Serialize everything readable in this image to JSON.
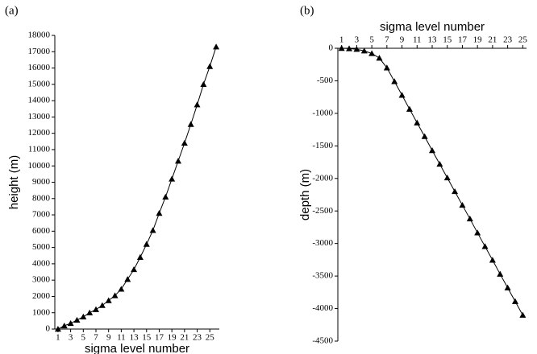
{
  "chart_data": [
    {
      "type": "line",
      "label": "(a)",
      "xlabel": "sigma level number",
      "ylabel": "height (m)",
      "x": [
        1,
        2,
        3,
        4,
        5,
        6,
        7,
        8,
        9,
        10,
        11,
        12,
        13,
        14,
        15,
        16,
        17,
        18,
        19,
        20,
        21,
        22,
        23,
        24,
        25,
        26
      ],
      "series": [
        {
          "name": "height",
          "color": "#000000",
          "values": [
            0,
            200,
            350,
            550,
            750,
            1000,
            1200,
            1450,
            1750,
            2050,
            2450,
            3050,
            3650,
            4400,
            5200,
            6050,
            7100,
            8100,
            9200,
            10300,
            11400,
            12550,
            13750,
            15000,
            16100,
            17300
          ]
        }
      ],
      "xlim": [
        0.5,
        26.5
      ],
      "xticks": [
        1,
        3,
        5,
        7,
        9,
        11,
        13,
        15,
        17,
        19,
        21,
        23,
        25
      ],
      "ylim": [
        0,
        18000
      ],
      "yticks": [
        0,
        1000,
        2000,
        3000,
        4000,
        5000,
        6000,
        7000,
        8000,
        9000,
        10000,
        11000,
        12000,
        13000,
        14000,
        15000,
        16000,
        17000,
        18000
      ],
      "marker": "triangle"
    },
    {
      "type": "line",
      "label": "(b)",
      "xlabel": "sigma level number",
      "ylabel": "depth (m)",
      "x": [
        1,
        2,
        3,
        4,
        5,
        6,
        7,
        8,
        9,
        10,
        11,
        12,
        13,
        14,
        15,
        16,
        17,
        18,
        19,
        20,
        21,
        22,
        23,
        24,
        25
      ],
      "series": [
        {
          "name": "depth",
          "color": "#000000",
          "values": [
            0,
            -5,
            -15,
            -40,
            -80,
            -150,
            -300,
            -510,
            -720,
            -935,
            -1145,
            -1355,
            -1570,
            -1780,
            -1990,
            -2200,
            -2410,
            -2620,
            -2835,
            -3045,
            -3255,
            -3470,
            -3680,
            -3890,
            -4100
          ]
        }
      ],
      "xlim": [
        0.5,
        25.5
      ],
      "xticks": [
        1,
        3,
        5,
        7,
        9,
        11,
        13,
        15,
        17,
        19,
        21,
        23,
        25
      ],
      "ylim": [
        -4500,
        0
      ],
      "yticks": [
        -4500,
        -4000,
        -3500,
        -3000,
        -2500,
        -2000,
        -1500,
        -1000,
        -500,
        0
      ],
      "marker": "triangle",
      "xaxis_position": "top"
    }
  ]
}
